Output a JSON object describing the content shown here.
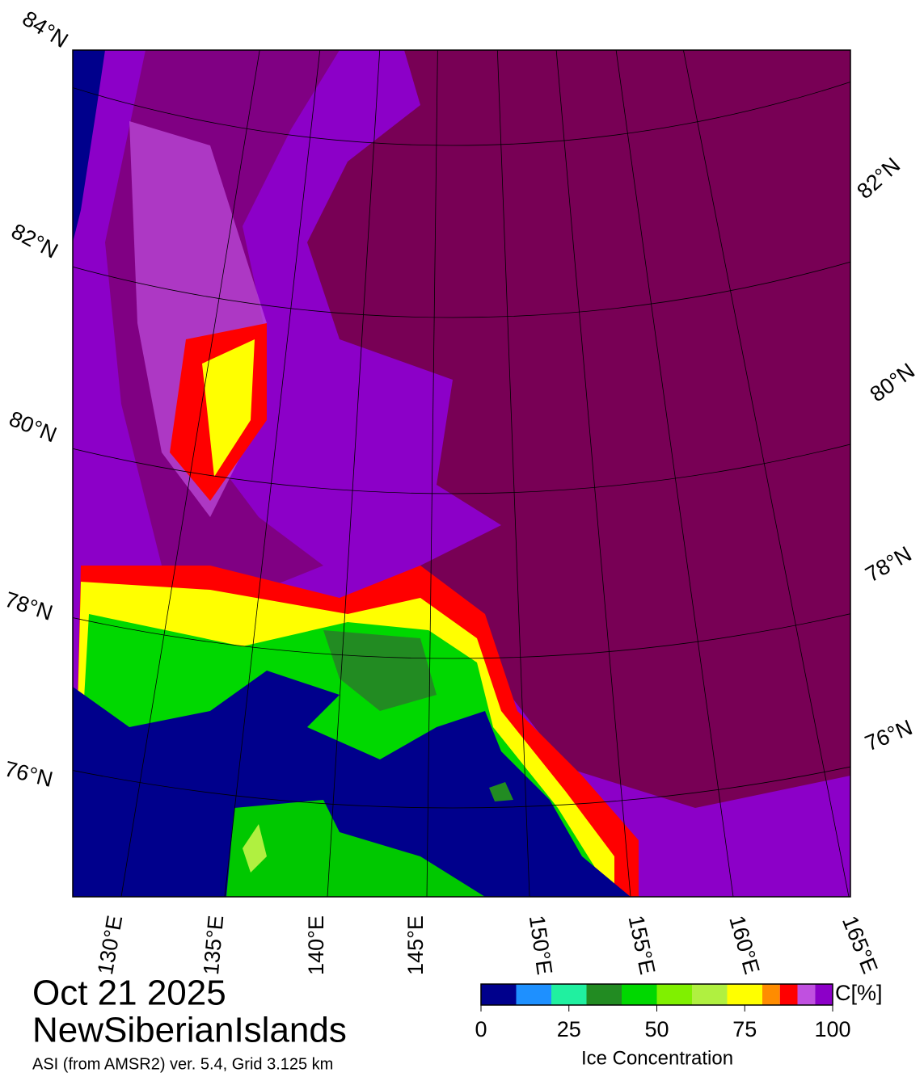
{
  "map": {
    "date": "Oct 21 2025",
    "region": "NewSiberianIslands",
    "source": "ASI (from AMSR2) ver. 5.4,  Grid 3.125 km",
    "lat_labels_left": [
      "84°N",
      "82°N",
      "80°N",
      "78°N",
      "76°N"
    ],
    "lat_labels_right": [
      "82°N",
      "80°N",
      "78°N",
      "76°N"
    ],
    "lon_labels": [
      "130°E",
      "135°E",
      "140°E",
      "145°E",
      "150°E",
      "155°E",
      "160°E",
      "165°E"
    ],
    "colorbar": {
      "label": "Ice Concentration",
      "unit": "C[%]",
      "range": [
        0,
        100
      ],
      "ticks": [
        0,
        25,
        50,
        75,
        100
      ],
      "bins": [
        0,
        10,
        20,
        30,
        40,
        50,
        60,
        70,
        80,
        85,
        90,
        95,
        100
      ],
      "colors": [
        "#00008c",
        "#1e90ff",
        "#20f0a0",
        "#228b22",
        "#00d800",
        "#80f000",
        "#b0f040",
        "#ffff00",
        "#ff8c00",
        "#ff0000",
        "#c050e0",
        "#8c00c8"
      ]
    }
  }
}
